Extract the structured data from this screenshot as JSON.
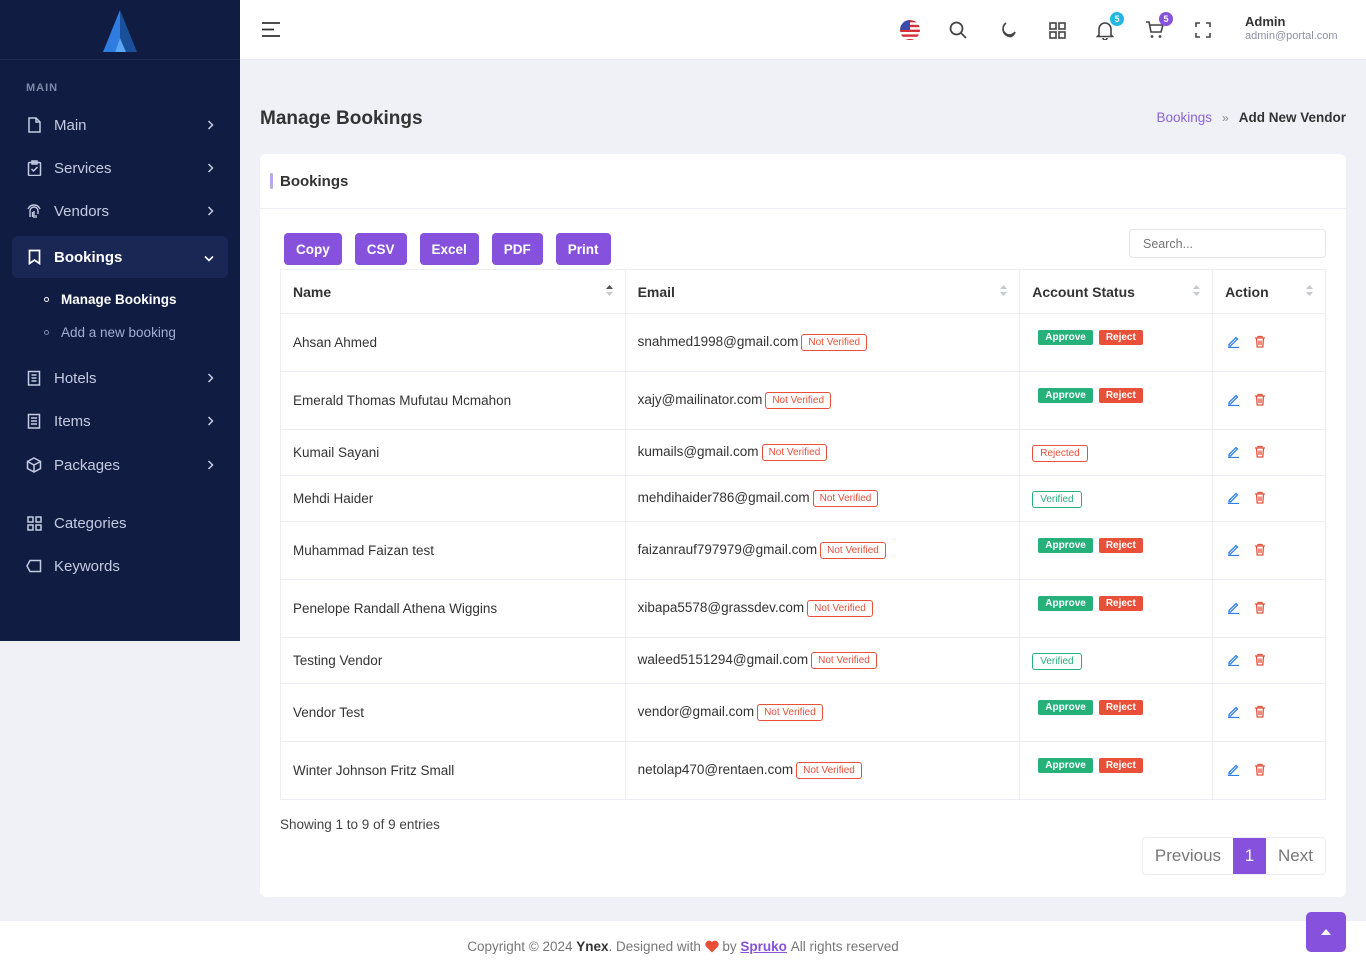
{
  "sidebar": {
    "section_label": "MAIN",
    "items": [
      {
        "label": "Main",
        "icon": "file-icon"
      },
      {
        "label": "Services",
        "icon": "clipboard-icon"
      },
      {
        "label": "Vendors",
        "icon": "fingerprint-icon"
      },
      {
        "label": "Bookings",
        "icon": "bookmark-icon",
        "active": true
      },
      {
        "label": "Hotels",
        "icon": "building-icon"
      },
      {
        "label": "Items",
        "icon": "list-icon"
      },
      {
        "label": "Packages",
        "icon": "package-icon"
      },
      {
        "label": "Categories",
        "icon": "grid-icon"
      },
      {
        "label": "Keywords",
        "icon": "tag-icon"
      }
    ],
    "sub_items": [
      {
        "label": "Manage Bookings",
        "active": true
      },
      {
        "label": "Add a new booking"
      }
    ]
  },
  "header": {
    "notification_count": "5",
    "cart_count": "5",
    "user_name": "Admin",
    "user_email": "admin@portal.com"
  },
  "page": {
    "title": "Manage Bookings",
    "breadcrumb_link": "Bookings",
    "breadcrumb_current": "Add New Vendor"
  },
  "card": {
    "title": "Bookings",
    "buttons": [
      "Copy",
      "CSV",
      "Excel",
      "PDF",
      "Print"
    ],
    "search_placeholder": "Search..."
  },
  "table": {
    "columns": [
      "Name",
      "Email",
      "Account Status",
      "Action"
    ],
    "rows": [
      {
        "name": "Ahsan Ahmed",
        "email": "snahmed1998@gmail.com",
        "email_status": "Not Verified",
        "status": "pending"
      },
      {
        "name": "Emerald Thomas Mufutau Mcmahon",
        "email": "xajy@mailinator.com",
        "email_status": "Not Verified",
        "status": "pending"
      },
      {
        "name": "Kumail Sayani",
        "email": "kumails@gmail.com",
        "email_status": "Not Verified",
        "status": "Rejected"
      },
      {
        "name": "Mehdi Haider",
        "email": "mehdihaider786@gmail.com",
        "email_status": "Not Verified",
        "status": "Verified"
      },
      {
        "name": "Muhammad Faizan test",
        "email": "faizanrauf797979@gmail.com",
        "email_status": "Not Verified",
        "status": "pending"
      },
      {
        "name": "Penelope Randall Athena Wiggins",
        "email": "xibapa5578@grassdev.com",
        "email_status": "Not Verified",
        "status": "pending"
      },
      {
        "name": "Testing Vendor",
        "email": "waleed5151294@gmail.com",
        "email_status": "Not Verified",
        "status": "Verified"
      },
      {
        "name": "Vendor Test",
        "email": "vendor@gmail.com",
        "email_status": "Not Verified",
        "status": "pending"
      },
      {
        "name": "Winter Johnson Fritz Small",
        "email": "netolap470@rentaen.com",
        "email_status": "Not Verified",
        "status": "pending"
      }
    ],
    "approve_label": "Approve",
    "reject_label": "Reject"
  },
  "pagination": {
    "showing": "Showing 1 to 9 of 9 entries",
    "previous": "Previous",
    "current": "1",
    "next": "Next"
  },
  "footer": {
    "prefix": "Copyright © 2024",
    "brand": "Ynex",
    "middle": ". Designed with",
    "by": "by",
    "author": "Spruko",
    "suffix": "All rights reserved"
  },
  "colors": {
    "sidebar_bg": "#111c43",
    "accent": "#8652dd",
    "danger": "#e8503a",
    "success": "#26b17b"
  }
}
